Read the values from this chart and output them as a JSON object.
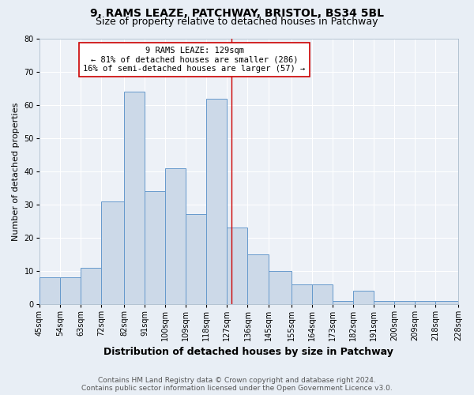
{
  "title": "9, RAMS LEAZE, PATCHWAY, BRISTOL, BS34 5BL",
  "subtitle": "Size of property relative to detached houses in Patchway",
  "xlabel": "Distribution of detached houses by size in Patchway",
  "ylabel": "Number of detached properties",
  "bin_edges": [
    45,
    54,
    63,
    72,
    82,
    91,
    100,
    109,
    118,
    127,
    136,
    145,
    155,
    164,
    173,
    182,
    191,
    200,
    209,
    218,
    228
  ],
  "bin_labels": [
    "45sqm",
    "54sqm",
    "63sqm",
    "72sqm",
    "82sqm",
    "91sqm",
    "100sqm",
    "109sqm",
    "118sqm",
    "127sqm",
    "136sqm",
    "145sqm",
    "155sqm",
    "164sqm",
    "173sqm",
    "182sqm",
    "191sqm",
    "200sqm",
    "209sqm",
    "218sqm",
    "228sqm"
  ],
  "counts": [
    8,
    8,
    11,
    31,
    64,
    34,
    41,
    27,
    62,
    23,
    15,
    10,
    6,
    6,
    1,
    4,
    1,
    1,
    1,
    1
  ],
  "bar_facecolor": "#ccd9e8",
  "bar_edgecolor": "#6699cc",
  "reference_line_x": 129,
  "reference_line_color": "#cc0000",
  "annotation_text": "9 RAMS LEAZE: 129sqm\n← 81% of detached houses are smaller (286)\n16% of semi-detached houses are larger (57) →",
  "annotation_box_edgecolor": "#cc0000",
  "annotation_box_facecolor": "white",
  "ylim": [
    0,
    80
  ],
  "yticks": [
    0,
    10,
    20,
    30,
    40,
    50,
    60,
    70,
    80
  ],
  "bg_color": "#e8eef5",
  "plot_bg_color": "#edf1f7",
  "footer_text": "Contains HM Land Registry data © Crown copyright and database right 2024.\nContains public sector information licensed under the Open Government Licence v3.0.",
  "title_fontsize": 10,
  "subtitle_fontsize": 9,
  "xlabel_fontsize": 9,
  "ylabel_fontsize": 8,
  "tick_fontsize": 7,
  "annotation_fontsize": 7.5,
  "footer_fontsize": 6.5
}
